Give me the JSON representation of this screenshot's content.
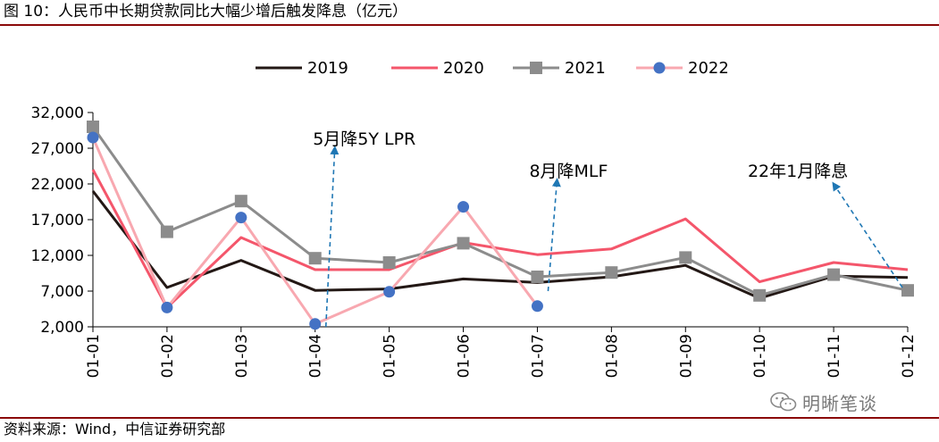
{
  "figure": {
    "title": "图 10：人民币中长期贷款同比大幅少增后触发降息（亿元）",
    "source": "资料来源：Wind，中信证券研究部",
    "watermark": "明晰笔谈",
    "watermark_icon": "wechat-icon"
  },
  "chart_data": {
    "type": "line",
    "categories": [
      "01-01",
      "01-02",
      "01-03",
      "01-04",
      "01-05",
      "01-06",
      "01-07",
      "01-08",
      "01-09",
      "01-10",
      "01-11",
      "01-12"
    ],
    "ylim": [
      2000,
      32000
    ],
    "yticks": [
      2000,
      7000,
      12000,
      17000,
      22000,
      27000,
      32000
    ],
    "ytick_labels": [
      "2,000",
      "7,000",
      "12,000",
      "17,000",
      "22,000",
      "27,000",
      "32,000"
    ],
    "grid": false,
    "legend_position": "top",
    "series": [
      {
        "name": "2019",
        "color": "#231815",
        "marker": "none",
        "values": [
          21000,
          7500,
          11300,
          7100,
          7300,
          8700,
          8200,
          9000,
          10600,
          6000,
          9100,
          8900
        ]
      },
      {
        "name": "2020",
        "color": "#f4566b",
        "marker": "none",
        "values": [
          24000,
          4700,
          14500,
          10000,
          10000,
          13800,
          12100,
          12900,
          17100,
          8300,
          11000,
          10000
        ]
      },
      {
        "name": "2021",
        "color": "#8c8c8c",
        "marker": "square",
        "values": [
          30000,
          15300,
          19600,
          11600,
          11000,
          13700,
          9000,
          9600,
          11700,
          6400,
          9300,
          7100
        ]
      },
      {
        "name": "2022",
        "color": "#f8a8b0",
        "marker_color": "#4472c4",
        "marker": "circle",
        "values": [
          28500,
          4700,
          17300,
          2400,
          6900,
          18800,
          4900,
          null,
          null,
          null,
          null,
          null
        ]
      }
    ],
    "annotations": [
      {
        "text": "5月降5Y LPR",
        "x": "01-04",
        "y": 28000,
        "arrow_from": [
          "01-04",
          2000
        ],
        "arrow_to": [
          "01-04",
          27000
        ]
      },
      {
        "text": "8月降MLF",
        "x": "01-07",
        "y": 23500,
        "arrow_from": [
          "01-07",
          7000
        ],
        "arrow_to": [
          "01-07",
          22500
        ]
      },
      {
        "text": "22年1月降息",
        "x": "01-11",
        "y": 23500,
        "arrow_from": [
          "01-12",
          7500
        ],
        "arrow_to": [
          "01-11",
          22000
        ]
      }
    ]
  }
}
